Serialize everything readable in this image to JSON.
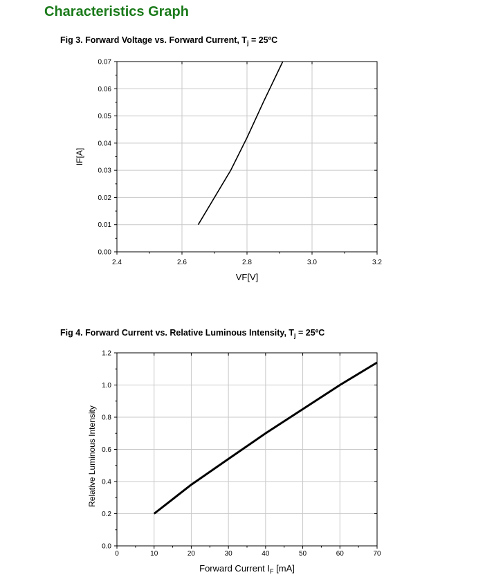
{
  "page": {
    "title": "Characteristics Graph"
  },
  "figures": [
    {
      "title_main": "Fig 3. Forward Voltage vs. Forward Current, T",
      "title_sub": "j",
      "title_end": " = 25ºC"
    },
    {
      "title_main": "Fig 4. Forward Current vs. Relative Luminous Intensity, T",
      "title_sub": "j",
      "title_end": " = 25ºC"
    }
  ],
  "chart_data": [
    {
      "type": "line",
      "xlabel": "VF[V]",
      "ylabel": "IF[A]",
      "xlim": [
        2.4,
        3.2
      ],
      "ylim": [
        0.0,
        0.07
      ],
      "xticks": [
        "2.4",
        "2.6",
        "2.8",
        "3.0",
        "3.2"
      ],
      "yticks": [
        "0.00",
        "0.01",
        "0.02",
        "0.03",
        "0.04",
        "0.05",
        "0.06",
        "0.07"
      ],
      "grid": true,
      "series": [
        {
          "x": [
            2.65,
            2.75,
            2.8,
            2.85,
            2.91
          ],
          "y": [
            0.01,
            0.03,
            0.042,
            0.055,
            0.07
          ]
        }
      ]
    },
    {
      "type": "line",
      "xlabel_main": "Forward Current I",
      "xlabel_sub": "F",
      "xlabel_end": " [mA]",
      "ylabel": "Relative Luminous Intensity",
      "xlim": [
        0,
        70
      ],
      "ylim": [
        0.0,
        1.2
      ],
      "xticks": [
        "0",
        "10",
        "20",
        "30",
        "40",
        "50",
        "60",
        "70"
      ],
      "yticks": [
        "0.0",
        "0.2",
        "0.4",
        "0.6",
        "0.8",
        "1.0",
        "1.2"
      ],
      "grid": true,
      "series": [
        {
          "x": [
            10,
            20,
            30,
            40,
            50,
            60,
            70
          ],
          "y": [
            0.2,
            0.38,
            0.54,
            0.7,
            0.85,
            1.0,
            1.14
          ]
        }
      ]
    }
  ]
}
